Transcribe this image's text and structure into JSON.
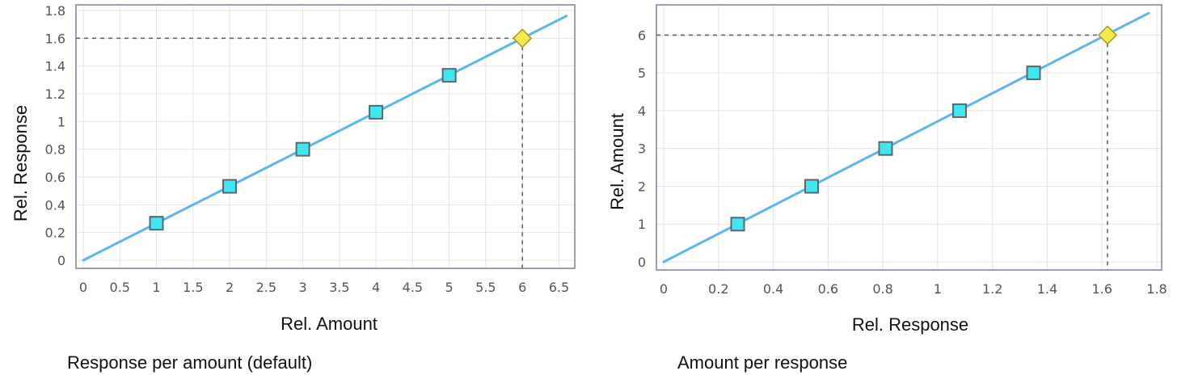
{
  "chart_data": [
    {
      "type": "line",
      "xlabel": "Rel. Amount",
      "ylabel": "Rel. Response",
      "caption": "Response per amount (default)",
      "xlim": [
        0,
        6.65
      ],
      "ylim": [
        0,
        1.8
      ],
      "xticks": [
        "0",
        "0.5",
        "1",
        "1.5",
        "2",
        "2.5",
        "3",
        "3.5",
        "4",
        "4.5",
        "5",
        "5.5",
        "6",
        "6.5"
      ],
      "yticks": [
        "0",
        "0.2",
        "0.4",
        "0.6",
        "0.8",
        "1",
        "1.2",
        "1.4",
        "1.6",
        "1.8"
      ],
      "grid": true,
      "series": [
        {
          "kind": "fit-line",
          "color": "#5bb6ee",
          "x": [
            0,
            6.6
          ],
          "y": [
            0,
            1.76
          ]
        },
        {
          "kind": "calibration-points",
          "marker": "square",
          "color": "#40e6f0",
          "x": [
            1,
            2,
            3,
            4,
            5
          ],
          "y": [
            0.267,
            0.533,
            0.8,
            1.067,
            1.333
          ]
        },
        {
          "kind": "sample-point",
          "marker": "diamond",
          "color": "#f5ea4a",
          "x": [
            6
          ],
          "y": [
            1.6
          ]
        }
      ],
      "reference": {
        "x": 6,
        "y": 1.6
      }
    },
    {
      "type": "line",
      "xlabel": "Rel. Response",
      "ylabel": "Rel. Amount",
      "caption": "Amount per response",
      "xlim": [
        0,
        1.8
      ],
      "ylim": [
        0,
        6.65
      ],
      "xticks": [
        "0",
        "0.2",
        "0.4",
        "0.6",
        "0.8",
        "1",
        "1.2",
        "1.4",
        "1.6",
        "1.8"
      ],
      "yticks": [
        "0",
        "1",
        "2",
        "3",
        "4",
        "5",
        "6"
      ],
      "grid": true,
      "series": [
        {
          "kind": "fit-line",
          "color": "#5bb6ee",
          "x": [
            0,
            1.77
          ],
          "y": [
            0,
            6.58
          ]
        },
        {
          "kind": "calibration-points",
          "marker": "square",
          "color": "#40e6f0",
          "x": [
            0.27,
            0.54,
            0.81,
            1.08,
            1.35
          ],
          "y": [
            1,
            2,
            3,
            4,
            5
          ]
        },
        {
          "kind": "sample-point",
          "marker": "diamond",
          "color": "#f5ea4a",
          "x": [
            1.62
          ],
          "y": [
            6
          ]
        }
      ],
      "reference": {
        "x": 1.62,
        "y": 6
      }
    }
  ]
}
